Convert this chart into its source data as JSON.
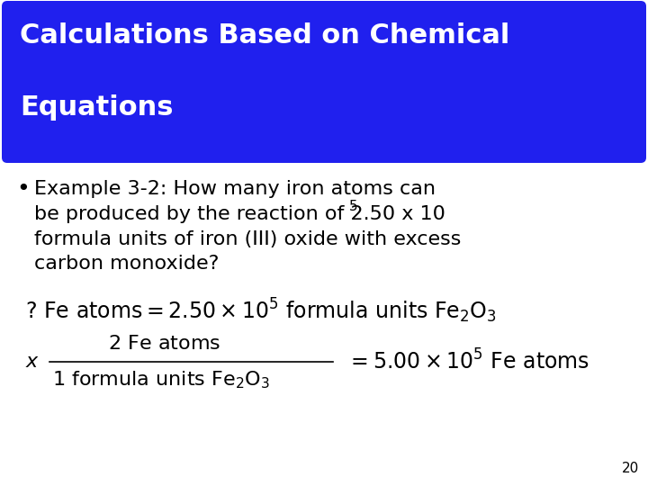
{
  "title_line1": "Calculations Based on Chemical",
  "title_line2": "Equations",
  "title_bg_color": "#2020EE",
  "title_text_color": "#FFFFFF",
  "bg_color": "#FFFFFF",
  "bullet_line1": "Example 3-2: How many iron atoms can",
  "bullet_line2a": "be produced by the reaction of 2.50 x 10",
  "bullet_line2_sup": "5",
  "bullet_line3": "formula units of iron (III) oxide with excess",
  "bullet_line4": "carbon monoxide?",
  "page_number": "20",
  "font_size_title": 22,
  "font_size_bullet": 16,
  "font_size_math": 15,
  "font_size_page": 11
}
